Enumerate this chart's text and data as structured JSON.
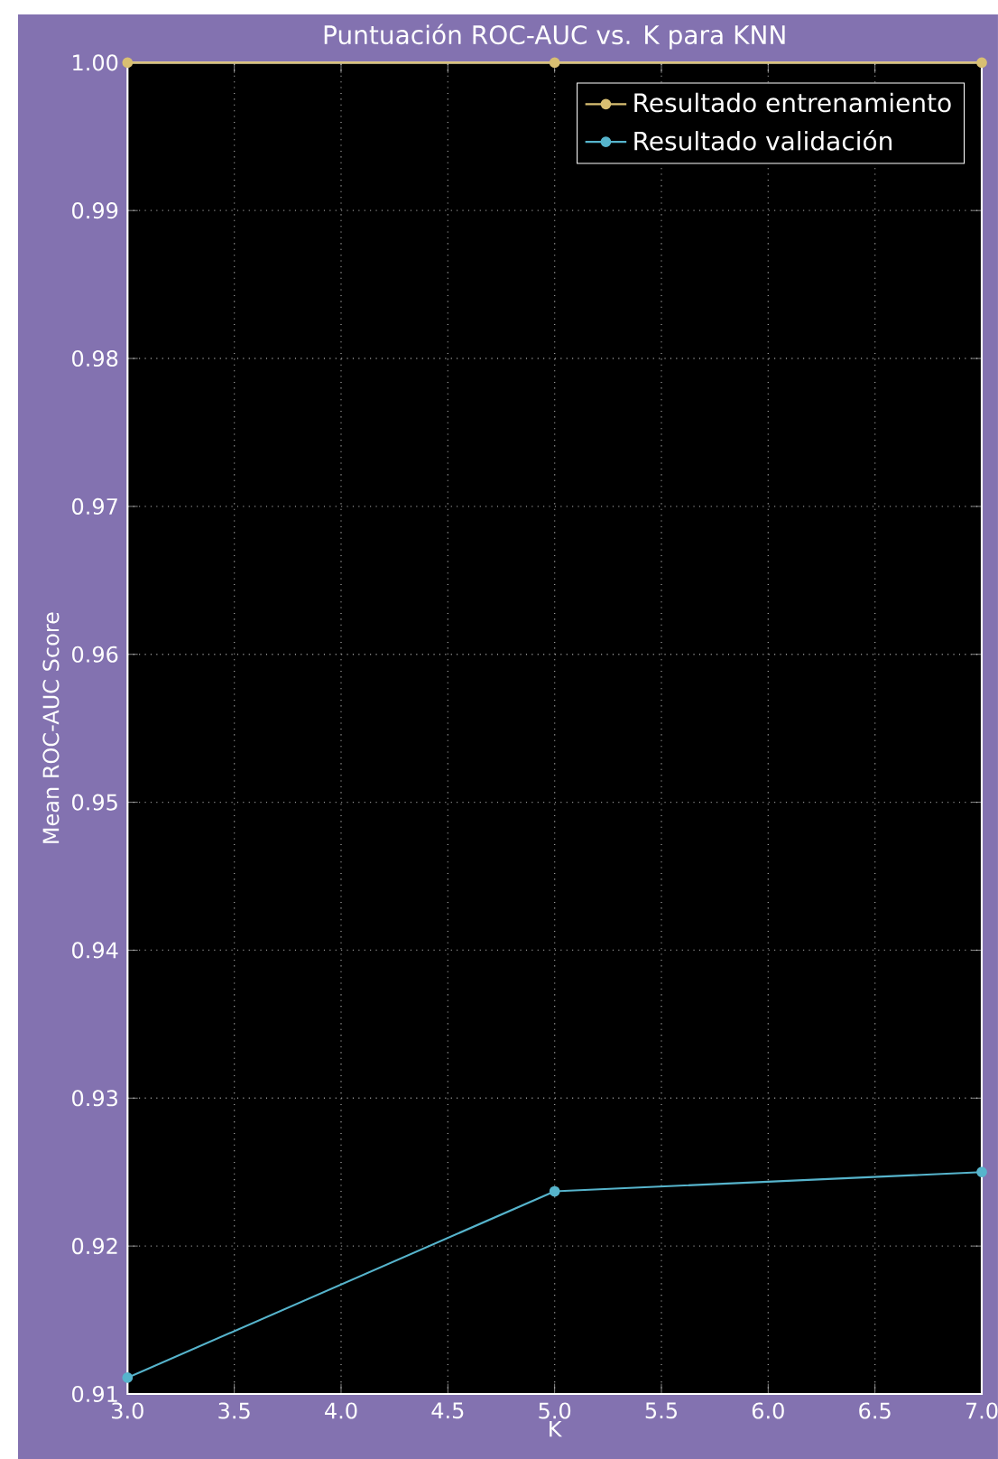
{
  "chart_data": {
    "type": "line",
    "title": "Puntuación ROC-AUC vs. K para KNN",
    "xlabel": "K",
    "ylabel": "Mean ROC-AUC Score",
    "x": [
      3,
      5,
      7
    ],
    "series": [
      {
        "name": "Resultado entrenamiento",
        "color": "#d9bf72",
        "values": [
          1.0,
          1.0,
          1.0
        ]
      },
      {
        "name": "Resultado validación",
        "color": "#56b4cc",
        "values": [
          0.9111,
          0.9237,
          0.925
        ]
      }
    ],
    "xlim": [
      3,
      7
    ],
    "xticks": [
      {
        "value": 3,
        "label": "3.0"
      },
      {
        "value": 3.5,
        "label": "3.5"
      },
      {
        "value": 4,
        "label": "4.0"
      },
      {
        "value": 4.5,
        "label": "4.5"
      },
      {
        "value": 5,
        "label": "5.0"
      },
      {
        "value": 5.5,
        "label": "5.5"
      },
      {
        "value": 6,
        "label": "6.0"
      },
      {
        "value": 6.5,
        "label": "6.5"
      },
      {
        "value": 7,
        "label": "7.0"
      }
    ],
    "ylim": [
      0.91,
      1.0
    ],
    "yticks": [
      0.91,
      0.92,
      0.93,
      0.94,
      0.95,
      0.96,
      0.97,
      0.98,
      0.99,
      {
        "value": 1.0,
        "label": "1.00"
      }
    ],
    "grid": true,
    "legend": "top right",
    "marker": "circle",
    "line_style": "solid"
  }
}
